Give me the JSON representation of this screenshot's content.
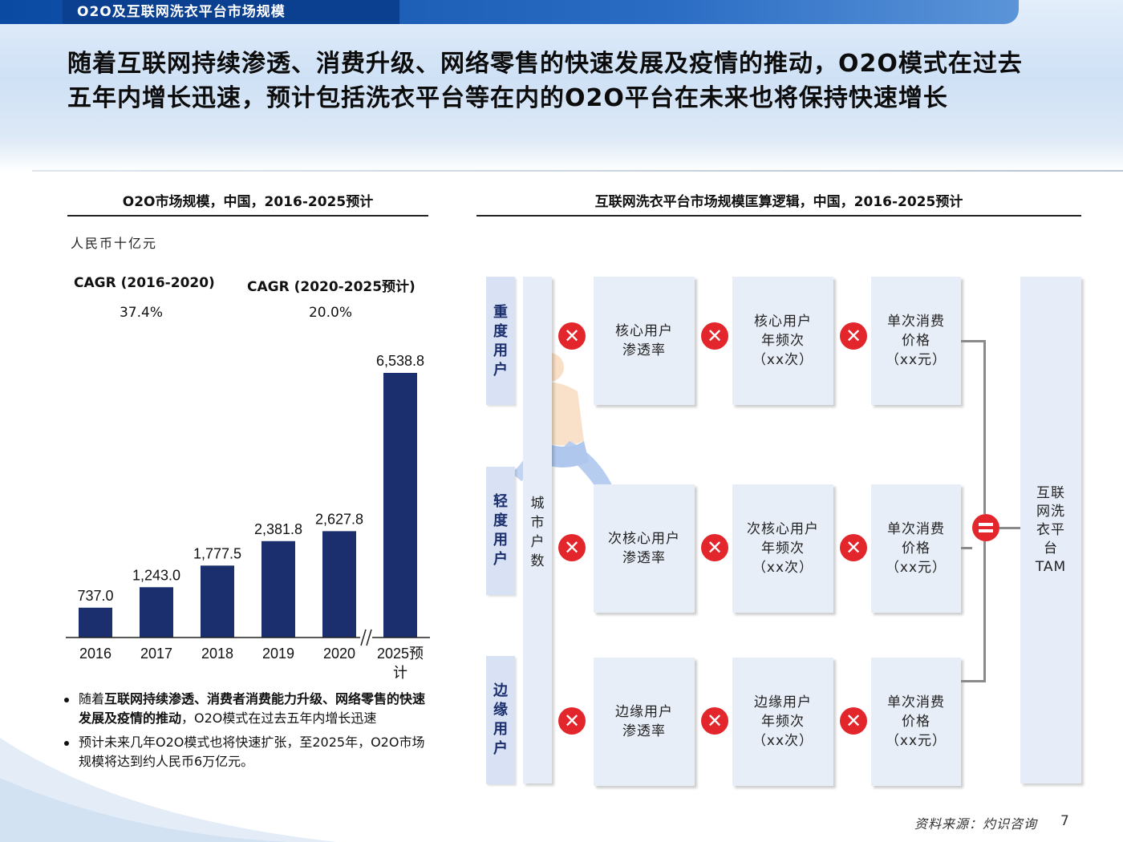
{
  "header": {
    "section_title": "O2O及互联网洗衣平台市场规模",
    "headline": "随着互联网持续渗透、消费升级、网络零售的快速发展及疫情的推动，O2O模式在过去五年内增长迅速，预计包括洗衣平台等在内的O2O平台在未来也将保持快速增长"
  },
  "left_panel": {
    "title": "O2O市场规模，中国，2016-2025预计",
    "unit": "人民币十亿元",
    "cagr": [
      {
        "label": "CAGR (2016-2020)",
        "value": "37.4%"
      },
      {
        "label": "CAGR (2020-2025预计)",
        "value": "20.0%"
      }
    ],
    "bullets": [
      {
        "pre": "随着",
        "bold": "互联网持续渗透、消费者消费能力升级、网络零售的快速发展及疫情的推动",
        "post": "，O2O模式在过去五年内增长迅速"
      },
      {
        "pre": "预计未来几年O2O模式也将快速扩张，至2025年，O2O市场规模将达到约人民币6万亿元。",
        "bold": "",
        "post": ""
      }
    ]
  },
  "chart_data": {
    "type": "bar",
    "title": "O2O市场规模，中国，2016-2025预计",
    "ylabel": "人民币十亿元",
    "categories": [
      "2016",
      "2017",
      "2018",
      "2019",
      "2020",
      "2025预计"
    ],
    "values": [
      737.0,
      1243.0,
      1777.5,
      2381.8,
      2627.8,
      6538.8
    ],
    "value_labels": [
      "737.0",
      "1,243.0",
      "1,777.5",
      "2,381.8",
      "2,627.8",
      "6,538.8"
    ],
    "axis_break_after": "2020",
    "ylim": [
      0,
      7000
    ],
    "bar_color": "#1b2f6e",
    "grid": false
  },
  "right_panel": {
    "title": "互联网洗衣平台市场规模匡算逻辑，中国，2016-2025预计",
    "city_label": "城市户数",
    "rows": [
      {
        "segment": "重度用户",
        "penetration": [
          "核心用户",
          "渗透率"
        ],
        "frequency": [
          "核心用户",
          "年频次",
          "（xx次）"
        ],
        "price": [
          "单次消费",
          "价格",
          "（xx元）"
        ]
      },
      {
        "segment": "轻度用户",
        "penetration": [
          "次核心用户",
          "渗透率"
        ],
        "frequency": [
          "次核心用户",
          "年频次",
          "（xx次）"
        ],
        "price": [
          "单次消费",
          "价格",
          "（xx元）"
        ]
      },
      {
        "segment": "边缘用户",
        "penetration": [
          "边缘用户",
          "渗透率"
        ],
        "frequency": [
          "边缘用户",
          "年频次",
          "（xx次）"
        ],
        "price": [
          "单次消费",
          "价格",
          "（xx元）"
        ]
      }
    ],
    "multiply_symbol": "✕",
    "tam_label": [
      "互联",
      "网洗",
      "衣平",
      "台",
      "TAM"
    ]
  },
  "colors": {
    "accent_red": "#e2262b",
    "bar_navy": "#1b2f6e",
    "header_blue": "#0a4aa3"
  },
  "footer": {
    "source": "资料来源：灼识咨询",
    "page": "7"
  }
}
